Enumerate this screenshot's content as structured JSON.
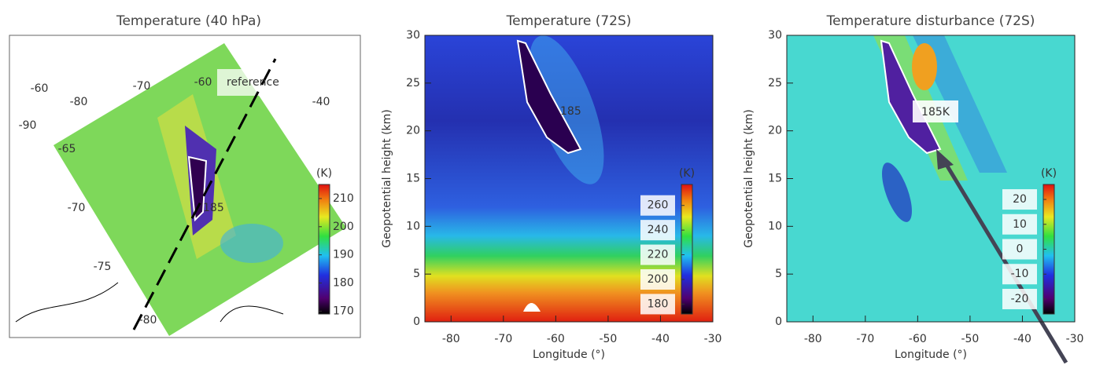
{
  "chart_data": [
    {
      "type": "map",
      "title": "Temperature (40 hPa)",
      "annotation": "reference",
      "contour_label": "185",
      "lon_labels": [
        -60,
        -70,
        -80,
        -90,
        -60,
        -40
      ],
      "lat_labels": [
        -65,
        -70,
        -75,
        -80
      ],
      "colorbar": {
        "label": "(K)",
        "lim": [
          169,
          215
        ],
        "ticks": [
          170,
          180,
          190,
          200,
          210
        ]
      }
    },
    {
      "type": "contour",
      "title": "Temperature (72S)",
      "xlabel": "Longitude (°)",
      "ylabel": "Geopotential height (km)",
      "xlim": [
        -85,
        -30
      ],
      "xticks": [
        -80,
        -70,
        -60,
        -50,
        -40,
        -30
      ],
      "ylim": [
        0,
        30
      ],
      "yticks": [
        0,
        5,
        10,
        15,
        20,
        25,
        30
      ],
      "contour_label": "185",
      "colorbar": {
        "label": "(K)",
        "lim": [
          172,
          277
        ],
        "ticks": [
          260,
          240,
          220,
          200,
          180
        ]
      }
    },
    {
      "type": "contour",
      "title": "Temperature disturbance (72S)",
      "xlabel": "Longitude (°)",
      "ylabel": "Geopotential height (km)",
      "xlim": [
        -85,
        -30
      ],
      "xticks": [
        -80,
        -70,
        -60,
        -50,
        -40,
        -30
      ],
      "ylim": [
        0,
        30
      ],
      "yticks": [
        0,
        5,
        10,
        15,
        20,
        25,
        30
      ],
      "annotation": "185K",
      "colorbar": {
        "label": "(K)",
        "lim": [
          -26,
          26
        ],
        "ticks": [
          20,
          10,
          0,
          -10,
          -20
        ]
      }
    }
  ]
}
